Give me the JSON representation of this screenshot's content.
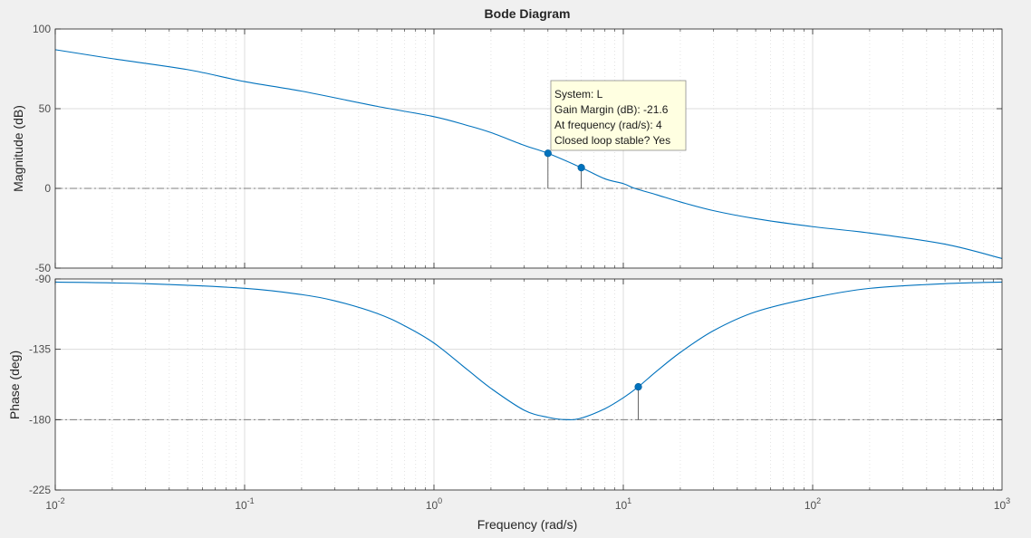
{
  "chart_data": {
    "type": "line",
    "title": "Bode Diagram",
    "xlabel": "Frequency  (rad/s)",
    "x_scale": "log",
    "xlim": [
      0.01,
      1000
    ],
    "x_ticks": [
      {
        "value": 0.01,
        "base": "10",
        "exp": "-2"
      },
      {
        "value": 0.1,
        "base": "10",
        "exp": "-1"
      },
      {
        "value": 1,
        "base": "10",
        "exp": "0"
      },
      {
        "value": 10,
        "base": "10",
        "exp": "1"
      },
      {
        "value": 100,
        "base": "10",
        "exp": "2"
      },
      {
        "value": 1000,
        "base": "10",
        "exp": "3"
      }
    ],
    "grid": true,
    "colors": {
      "line": "#0072bd",
      "marker": "#0072bd",
      "axes_bg": "#ffffff",
      "figure_bg": "#f0f0f0",
      "grid": "#dcdcdc",
      "reference_line": "#7f7f7f",
      "tooltip_bg": "#ffffe1"
    },
    "magnitude": {
      "ylabel": "Magnitude (dB)",
      "ylim": [
        -50,
        100
      ],
      "y_ticks": [
        {
          "value": 100,
          "label": "100"
        },
        {
          "value": 50,
          "label": "50"
        },
        {
          "value": 0,
          "label": "0"
        },
        {
          "value": -50,
          "label": "-50"
        }
      ],
      "reference_y": 0,
      "series": [
        {
          "x": [
            0.01,
            0.02,
            0.05,
            0.1,
            0.2,
            0.5,
            1,
            1.5,
            2,
            3,
            4,
            6,
            8,
            10,
            11.5,
            15,
            20,
            30,
            50,
            100,
            200,
            500,
            1000
          ],
          "y": [
            87,
            81.4,
            74.5,
            67,
            61,
            51.5,
            45,
            39.5,
            35,
            27,
            22,
            13,
            6,
            3,
            0,
            -4,
            -8.5,
            -14,
            -19,
            -24,
            -28,
            -35,
            -44
          ]
        }
      ],
      "markers": [
        {
          "x": 4,
          "y": 22
        },
        {
          "x": 6,
          "y": 13
        }
      ]
    },
    "phase": {
      "ylabel": "Phase (deg)",
      "ylim": [
        -225,
        -90
      ],
      "y_ticks": [
        {
          "value": -90,
          "label": "-90"
        },
        {
          "value": -135,
          "label": "-135"
        },
        {
          "value": -180,
          "label": "-180"
        },
        {
          "value": -225,
          "label": "-225"
        }
      ],
      "reference_y": -180,
      "series": [
        {
          "x": [
            0.01,
            0.03,
            0.1,
            0.2,
            0.3,
            0.5,
            0.7,
            1,
            1.5,
            2,
            3,
            4,
            5,
            6,
            8,
            10,
            12,
            15,
            20,
            30,
            50,
            100,
            200,
            500,
            1000
          ],
          "y": [
            -92,
            -93,
            -96,
            -100,
            -104,
            -112,
            -120,
            -131,
            -148,
            -160,
            -174,
            -178.5,
            -180,
            -179,
            -173,
            -166,
            -159,
            -149,
            -137,
            -123,
            -111,
            -102,
            -96,
            -93,
            -92
          ]
        }
      ],
      "markers": [
        {
          "x": 12,
          "y": -159
        }
      ]
    },
    "datatip": {
      "lines": [
        "System: L",
        "Gain Margin (dB): -21.6",
        "At frequency (rad/s): 4",
        "Closed loop stable? Yes"
      ]
    }
  }
}
